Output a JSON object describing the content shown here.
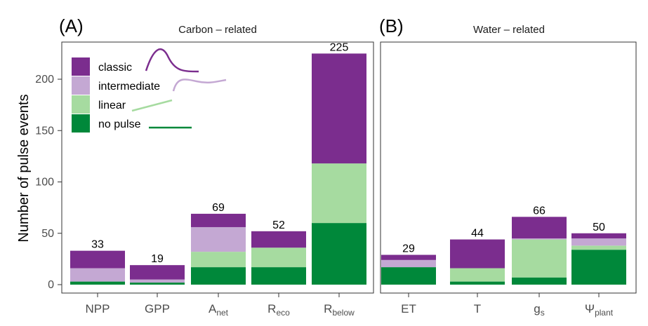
{
  "chart_data": [
    {
      "type": "bar",
      "stacked": true,
      "panel_label": "(A)",
      "title": "Carbon – related",
      "ylabel": "Number of pulse events",
      "ylim": [
        0,
        235
      ],
      "yticks": [
        0,
        50,
        100,
        150,
        200
      ],
      "categories": [
        {
          "main": "NPP",
          "sub": ""
        },
        {
          "main": "GPP",
          "sub": ""
        },
        {
          "main": "A",
          "sub": "net"
        },
        {
          "main": "R",
          "sub": "eco"
        },
        {
          "main": "R",
          "sub": "below"
        }
      ],
      "totals": [
        33,
        19,
        69,
        52,
        225
      ],
      "series": [
        {
          "name": "no pulse",
          "values": [
            3,
            2,
            17,
            17,
            60
          ]
        },
        {
          "name": "linear",
          "values": [
            0,
            0,
            15,
            19,
            58
          ]
        },
        {
          "name": "intermediate",
          "values": [
            13,
            3,
            24,
            0,
            0
          ]
        },
        {
          "name": "classic",
          "values": [
            17,
            14,
            13,
            16,
            107
          ]
        }
      ]
    },
    {
      "type": "bar",
      "stacked": true,
      "panel_label": "(B)",
      "title": "Water – related",
      "ylim": [
        0,
        235
      ],
      "categories": [
        {
          "main": "ET",
          "sub": ""
        },
        {
          "main": "T",
          "sub": ""
        },
        {
          "main": "g",
          "sub": "s"
        },
        {
          "main": "Ψ",
          "sub": "plant"
        }
      ],
      "totals": [
        29,
        44,
        66,
        50
      ],
      "series": [
        {
          "name": "no pulse",
          "values": [
            17,
            3,
            7,
            34
          ]
        },
        {
          "name": "linear",
          "values": [
            0,
            13,
            37,
            4
          ]
        },
        {
          "name": "intermediate",
          "values": [
            7,
            0,
            1,
            7
          ]
        },
        {
          "name": "classic",
          "values": [
            5,
            28,
            21,
            5
          ]
        }
      ]
    }
  ],
  "legend": {
    "placement": "top-left",
    "items": [
      {
        "label": "classic",
        "color": "#7b2d8e"
      },
      {
        "label": "intermediate",
        "color": "#c4a8d3"
      },
      {
        "label": "linear",
        "color": "#a6dba0"
      },
      {
        "label": "no pulse",
        "color": "#00883a"
      }
    ]
  },
  "colors": {
    "no pulse": "#00883a",
    "linear": "#a6dba0",
    "intermediate": "#c4a8d3",
    "classic": "#7b2d8e"
  }
}
